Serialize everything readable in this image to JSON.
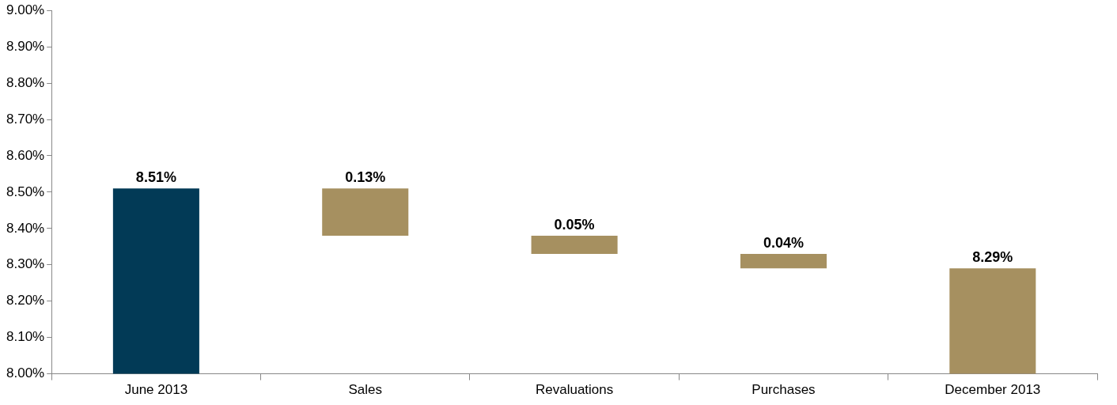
{
  "chart_data": {
    "type": "bar",
    "categories": [
      "June 2013",
      "Sales",
      "Revaluations",
      "Purchases",
      "December 2013"
    ],
    "values": [
      8.51,
      0.13,
      0.05,
      0.04,
      8.29
    ],
    "base": [
      null,
      8.38,
      8.33,
      8.29,
      null
    ],
    "colors": [
      "#023a56",
      "#a69060",
      "#a69060",
      "#a69060",
      "#a69060"
    ],
    "value_labels": [
      "8.51%",
      "0.13%",
      "0.05%",
      "0.04%",
      "8.29%"
    ],
    "ylim": [
      8.0,
      9.0
    ],
    "yticks": [
      {
        "value": 8.0,
        "label": "8.00%"
      },
      {
        "value": 8.1,
        "label": "8.10%"
      },
      {
        "value": 8.2,
        "label": "8.20%"
      },
      {
        "value": 8.3,
        "label": "8.30%"
      },
      {
        "value": 8.4,
        "label": "8.40%"
      },
      {
        "value": 8.5,
        "label": "8.50%"
      },
      {
        "value": 8.6,
        "label": "8.60%"
      },
      {
        "value": 8.7,
        "label": "8.70%"
      },
      {
        "value": 8.8,
        "label": "8.80%"
      },
      {
        "value": 8.9,
        "label": "8.90%"
      },
      {
        "value": 9.0,
        "label": "9.00%"
      }
    ],
    "grid": false,
    "legend": false
  }
}
